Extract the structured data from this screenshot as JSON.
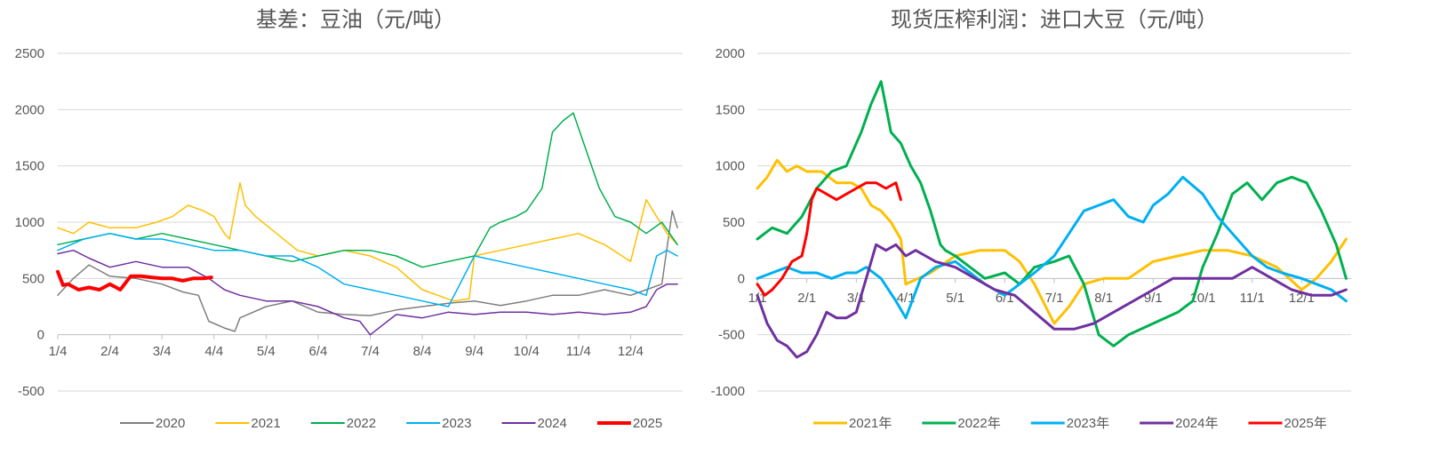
{
  "chart_data": [
    {
      "type": "line",
      "title": "基差：豆油（元/吨）",
      "ylim": [
        -500,
        2500
      ],
      "yticks": [
        "2500",
        "2000",
        "1500",
        "1000",
        "500",
        "0",
        "-500"
      ],
      "ytick_values": [
        2500,
        2000,
        1500,
        1000,
        500,
        0,
        -500
      ],
      "categories": [
        "1/4",
        "2/4",
        "3/4",
        "4/4",
        "5/4",
        "6/4",
        "7/4",
        "8/4",
        "9/4",
        "10/4",
        "11/4",
        "12/4"
      ],
      "x_domain": [
        0,
        12
      ],
      "legend_position": "bottom",
      "grid": true,
      "series": [
        {
          "name": "2020",
          "color": "#7f7f7f",
          "width": 1.5,
          "x": [
            0,
            0.3,
            0.6,
            1.0,
            1.5,
            2.0,
            2.4,
            2.7,
            2.9,
            3.0,
            3.2,
            3.4,
            3.5,
            4.0,
            4.5,
            5.0,
            5.5,
            6.0,
            6.5,
            7.0,
            7.5,
            8.0,
            8.5,
            9.0,
            9.5,
            10.0,
            10.5,
            11.0,
            11.3,
            11.6,
            11.8,
            11.9
          ],
          "values": [
            350,
            500,
            620,
            520,
            500,
            450,
            380,
            350,
            120,
            100,
            60,
            30,
            150,
            250,
            300,
            200,
            180,
            170,
            220,
            250,
            280,
            300,
            260,
            300,
            350,
            350,
            400,
            350,
            400,
            450,
            1100,
            950
          ]
        },
        {
          "name": "2021",
          "color": "#ffc000",
          "width": 1.5,
          "x": [
            0,
            0.3,
            0.6,
            1.0,
            1.5,
            1.9,
            2.2,
            2.5,
            2.8,
            3.0,
            3.2,
            3.3,
            3.5,
            3.6,
            3.8,
            4.2,
            4.6,
            5.0,
            5.5,
            6.0,
            6.5,
            7.0,
            7.3,
            7.6,
            7.9,
            8.0,
            8.5,
            9.0,
            9.5,
            10.0,
            10.5,
            11.0,
            11.3,
            11.5,
            11.7,
            11.9
          ],
          "values": [
            950,
            900,
            1000,
            950,
            950,
            1000,
            1050,
            1150,
            1100,
            1050,
            900,
            850,
            1350,
            1150,
            1050,
            900,
            750,
            700,
            750,
            700,
            600,
            400,
            350,
            300,
            320,
            700,
            750,
            800,
            850,
            900,
            800,
            650,
            1200,
            1050,
            900,
            800
          ]
        },
        {
          "name": "2022",
          "color": "#00b050",
          "width": 1.5,
          "x": [
            0,
            0.5,
            1.0,
            1.5,
            2.0,
            2.5,
            3.0,
            3.5,
            4.0,
            4.5,
            5.0,
            5.5,
            6.0,
            6.5,
            7.0,
            7.5,
            8.0,
            8.3,
            8.5,
            8.8,
            9.0,
            9.3,
            9.5,
            9.7,
            9.9,
            10.1,
            10.4,
            10.7,
            11.0,
            11.3,
            11.6,
            11.9
          ],
          "values": [
            800,
            850,
            900,
            850,
            900,
            850,
            800,
            750,
            700,
            650,
            700,
            750,
            750,
            700,
            600,
            650,
            700,
            950,
            1000,
            1050,
            1100,
            1300,
            1800,
            1900,
            1970,
            1700,
            1300,
            1050,
            1000,
            900,
            1000,
            800
          ]
        },
        {
          "name": "2023",
          "color": "#00b0f0",
          "width": 1.5,
          "x": [
            0,
            0.5,
            1.0,
            1.5,
            2.0,
            2.5,
            3.0,
            3.5,
            4.0,
            4.5,
            5.0,
            5.5,
            6.0,
            6.5,
            7.0,
            7.5,
            8.0,
            8.5,
            9.0,
            9.5,
            10.0,
            10.5,
            11.0,
            11.3,
            11.5,
            11.7,
            11.9
          ],
          "values": [
            750,
            850,
            900,
            850,
            850,
            800,
            750,
            750,
            700,
            700,
            600,
            450,
            400,
            350,
            300,
            250,
            700,
            650,
            600,
            550,
            500,
            450,
            400,
            350,
            700,
            750,
            700
          ]
        },
        {
          "name": "2024",
          "color": "#7030a0",
          "width": 1.5,
          "x": [
            0,
            0.3,
            0.6,
            1.0,
            1.5,
            2.0,
            2.5,
            2.9,
            3.2,
            3.5,
            4.0,
            4.5,
            5.0,
            5.5,
            5.8,
            6.0,
            6.5,
            7.0,
            7.5,
            8.0,
            8.5,
            9.0,
            9.5,
            10.0,
            10.5,
            11.0,
            11.3,
            11.5,
            11.7,
            11.9
          ],
          "values": [
            720,
            750,
            680,
            600,
            650,
            600,
            600,
            500,
            400,
            350,
            300,
            300,
            250,
            150,
            120,
            0,
            180,
            150,
            200,
            180,
            200,
            200,
            180,
            200,
            180,
            200,
            250,
            400,
            450,
            450
          ]
        },
        {
          "name": "2025",
          "color": "#ff0000",
          "width": 4,
          "x": [
            0,
            0.1,
            0.2,
            0.4,
            0.6,
            0.8,
            1.0,
            1.2,
            1.4,
            1.6,
            1.8,
            2.0,
            2.2,
            2.4,
            2.6,
            2.8,
            2.95
          ],
          "values": [
            560,
            440,
            450,
            400,
            420,
            400,
            450,
            400,
            520,
            520,
            510,
            500,
            500,
            480,
            500,
            500,
            510
          ]
        }
      ]
    },
    {
      "type": "line",
      "title": "现货压榨利润：进口大豆（元/吨）",
      "ylim": [
        -1000,
        2000
      ],
      "yticks": [
        "2000",
        "1500",
        "1000",
        "500",
        "0",
        "-500",
        "-1000"
      ],
      "ytick_values": [
        2000,
        1500,
        1000,
        500,
        0,
        -500,
        -1000
      ],
      "categories": [
        "1/1",
        "2/1",
        "3/1",
        "4/1",
        "5/1",
        "6/1",
        "7/1",
        "8/1",
        "9/1",
        "10/1",
        "11/1",
        "12/1"
      ],
      "x_domain": [
        0,
        12
      ],
      "legend_position": "bottom",
      "grid": true,
      "series": [
        {
          "name": "2021年",
          "color": "#ffc000",
          "width": 3,
          "x": [
            0,
            0.2,
            0.4,
            0.6,
            0.8,
            1.0,
            1.3,
            1.6,
            1.9,
            2.1,
            2.3,
            2.5,
            2.7,
            2.9,
            3.0,
            3.5,
            4.0,
            4.5,
            5.0,
            5.3,
            5.6,
            6.0,
            6.3,
            6.6,
            7.0,
            7.5,
            8.0,
            8.5,
            9.0,
            9.5,
            10.0,
            10.5,
            11.0,
            11.3,
            11.6,
            11.9
          ],
          "values": [
            800,
            900,
            1050,
            950,
            1000,
            950,
            950,
            850,
            850,
            800,
            650,
            600,
            500,
            350,
            -50,
            50,
            200,
            250,
            250,
            150,
            -50,
            -400,
            -250,
            -50,
            0,
            0,
            150,
            200,
            250,
            250,
            200,
            100,
            -100,
            0,
            150,
            350
          ]
        },
        {
          "name": "2022年",
          "color": "#00b050",
          "width": 3,
          "x": [
            0,
            0.3,
            0.6,
            0.9,
            1.2,
            1.5,
            1.8,
            2.1,
            2.3,
            2.5,
            2.7,
            2.9,
            3.1,
            3.3,
            3.5,
            3.7,
            3.8,
            4.0,
            4.3,
            4.6,
            5.0,
            5.3,
            5.6,
            6.0,
            6.3,
            6.6,
            6.9,
            7.2,
            7.5,
            8.0,
            8.5,
            8.8,
            9.0,
            9.3,
            9.6,
            9.9,
            10.2,
            10.5,
            10.8,
            11.1,
            11.4,
            11.7,
            11.9
          ],
          "values": [
            350,
            450,
            400,
            550,
            800,
            950,
            1000,
            1300,
            1550,
            1750,
            1300,
            1200,
            1000,
            850,
            600,
            300,
            250,
            200,
            100,
            0,
            50,
            -50,
            100,
            150,
            200,
            -50,
            -500,
            -600,
            -500,
            -400,
            -300,
            -200,
            100,
            400,
            750,
            850,
            700,
            850,
            900,
            850,
            600,
            300,
            0
          ]
        },
        {
          "name": "2023年",
          "color": "#00b0f0",
          "width": 3,
          "x": [
            0,
            0.3,
            0.6,
            0.9,
            1.2,
            1.5,
            1.8,
            2.0,
            2.2,
            2.5,
            2.8,
            3.0,
            3.3,
            3.6,
            4.0,
            4.3,
            4.6,
            5.0,
            5.3,
            5.6,
            6.0,
            6.3,
            6.6,
            6.9,
            7.2,
            7.5,
            7.8,
            8.0,
            8.3,
            8.6,
            9.0,
            9.3,
            9.6,
            10.0,
            10.3,
            10.6,
            11.0,
            11.3,
            11.6,
            11.9
          ],
          "values": [
            0,
            50,
            100,
            50,
            50,
            0,
            50,
            50,
            100,
            0,
            -200,
            -350,
            0,
            100,
            150,
            50,
            -50,
            -150,
            -50,
            50,
            200,
            400,
            600,
            650,
            700,
            550,
            500,
            650,
            750,
            900,
            750,
            550,
            400,
            200,
            100,
            50,
            0,
            -50,
            -100,
            -200
          ]
        },
        {
          "name": "2024年",
          "color": "#7030a0",
          "width": 3,
          "x": [
            0,
            0.2,
            0.4,
            0.6,
            0.8,
            1.0,
            1.2,
            1.4,
            1.6,
            1.8,
            2.0,
            2.2,
            2.4,
            2.6,
            2.8,
            3.0,
            3.2,
            3.4,
            3.6,
            4.0,
            4.4,
            4.8,
            5.2,
            5.6,
            6.0,
            6.4,
            6.8,
            7.2,
            7.6,
            8.0,
            8.4,
            8.8,
            9.2,
            9.6,
            10.0,
            10.4,
            10.8,
            11.2,
            11.6,
            11.9
          ],
          "values": [
            -150,
            -400,
            -550,
            -600,
            -700,
            -650,
            -500,
            -300,
            -350,
            -350,
            -300,
            0,
            300,
            250,
            300,
            200,
            250,
            200,
            150,
            100,
            0,
            -100,
            -150,
            -300,
            -450,
            -450,
            -400,
            -300,
            -200,
            -100,
            0,
            0,
            0,
            0,
            100,
            0,
            -100,
            -150,
            -150,
            -100
          ]
        },
        {
          "name": "2025年",
          "color": "#ff0000",
          "width": 3,
          "x": [
            0,
            0.15,
            0.3,
            0.5,
            0.7,
            0.9,
            1.0,
            1.1,
            1.2,
            1.4,
            1.6,
            1.8,
            2.0,
            2.2,
            2.4,
            2.6,
            2.8,
            2.9
          ],
          "values": [
            -50,
            -150,
            -100,
            0,
            150,
            200,
            400,
            700,
            800,
            750,
            700,
            750,
            800,
            850,
            850,
            800,
            850,
            700
          ]
        }
      ]
    }
  ]
}
